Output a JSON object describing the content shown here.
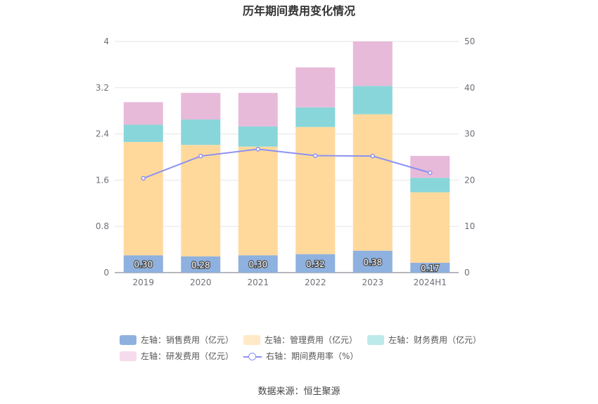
{
  "chart_data": {
    "type": "bar",
    "title": "历年期间费用变化情况",
    "categories": [
      "2019",
      "2020",
      "2021",
      "2022",
      "2023",
      "2024H1"
    ],
    "series": [
      {
        "name": "左轴：销售费用（亿元）",
        "axis": "left",
        "color": "#8eb1df",
        "legend_color": "#8eb1df",
        "values": [
          0.3,
          0.28,
          0.3,
          0.32,
          0.38,
          0.17
        ],
        "labels": [
          "0.30",
          "0.28",
          "0.30",
          "0.32",
          "0.38",
          "0.17"
        ]
      },
      {
        "name": "左轴：管理费用（亿元）",
        "axis": "left",
        "color": "#ffd99c",
        "legend_color": "#ffe9c6",
        "values": [
          1.96,
          1.93,
          1.88,
          2.2,
          2.36,
          1.22
        ]
      },
      {
        "name": "左轴：财务费用（亿元）",
        "axis": "left",
        "color": "#88d6da",
        "legend_color": "#bde9ea",
        "values": [
          0.3,
          0.44,
          0.35,
          0.34,
          0.49,
          0.25
        ]
      },
      {
        "name": "左轴：研发费用（亿元）",
        "axis": "left",
        "color": "#e8bada",
        "legend_color": "#f5dbed",
        "values": [
          0.39,
          0.46,
          0.58,
          0.69,
          0.77,
          0.38
        ]
      },
      {
        "name": "右轴：期间费用率（%）",
        "axis": "right",
        "type": "line",
        "color": "#8c91f2",
        "values": [
          20.4,
          25.2,
          26.7,
          25.3,
          25.2,
          21.6
        ]
      }
    ],
    "y_left": {
      "min": 0,
      "max": 4,
      "ticks": [
        "0",
        "0.8",
        "1.6",
        "2.4",
        "3.2",
        "4"
      ]
    },
    "y_right": {
      "min": 0,
      "max": 50,
      "ticks": [
        "0",
        "10",
        "20",
        "30",
        "40",
        "50"
      ]
    },
    "grid": true,
    "legend_position": "bottom"
  },
  "source": "数据来源：恒生聚源"
}
